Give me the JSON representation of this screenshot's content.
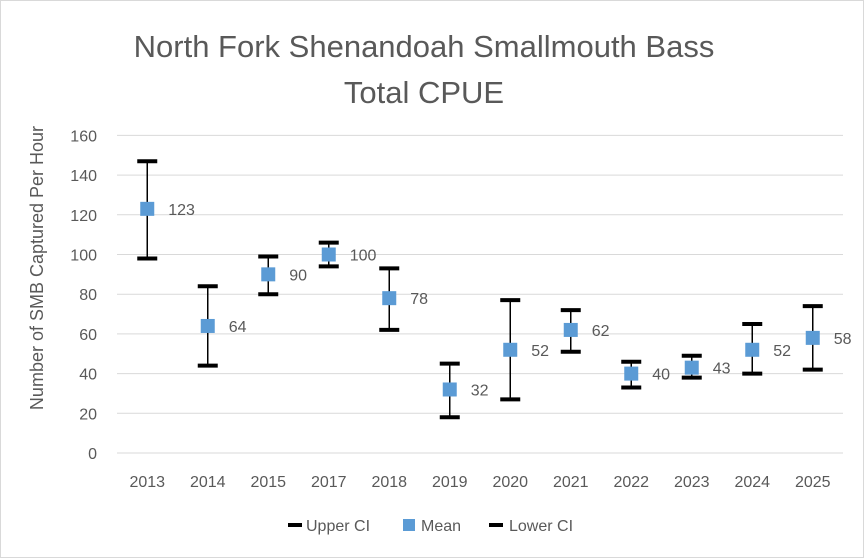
{
  "chart_data": {
    "type": "scatter",
    "title": "North Fork Shenandoah Smallmouth Bass",
    "subtitle": "Total CPUE",
    "xlabel": "",
    "ylabel": "Number of SMB Captured Per Hour",
    "ylim": [
      0,
      160
    ],
    "yticks": [
      0,
      20,
      40,
      60,
      80,
      100,
      120,
      140,
      160
    ],
    "grid": true,
    "legend_position": "bottom",
    "categories": [
      "2013",
      "2014",
      "2015",
      "2017",
      "2018",
      "2019",
      "2020",
      "2021",
      "2022",
      "2023",
      "2024",
      "2025"
    ],
    "series": [
      {
        "name": "Upper CI",
        "values": [
          147,
          84,
          99,
          106,
          93,
          45,
          77,
          72,
          46,
          49,
          65,
          74
        ]
      },
      {
        "name": "Mean",
        "values": [
          123,
          64,
          90,
          100,
          78,
          32,
          52,
          62,
          40,
          43,
          52,
          58
        ],
        "labels": [
          "123",
          "64",
          "90",
          "100",
          "78",
          "32",
          "52",
          "62",
          "40",
          "43",
          "52",
          "58"
        ]
      },
      {
        "name": "Lower CI",
        "values": [
          98,
          44,
          80,
          94,
          62,
          18,
          27,
          51,
          33,
          38,
          40,
          42
        ]
      }
    ],
    "colors": {
      "mean": "#5b9bd5",
      "ci": "#000000",
      "grid": "#d9d9d9",
      "text": "#595959"
    }
  }
}
